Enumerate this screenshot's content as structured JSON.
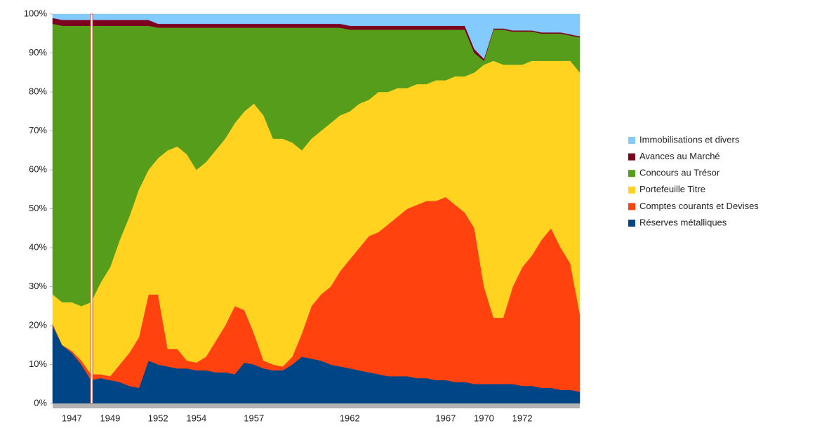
{
  "chart_data": {
    "type": "stacked_area",
    "categories": [
      null,
      null,
      "1947",
      null,
      null,
      null,
      "1949",
      null,
      null,
      null,
      null,
      "1952",
      null,
      null,
      null,
      "1954",
      null,
      null,
      null,
      null,
      null,
      "1957",
      null,
      null,
      null,
      null,
      null,
      null,
      null,
      null,
      null,
      "1962",
      null,
      null,
      null,
      null,
      null,
      null,
      null,
      null,
      null,
      "1967",
      null,
      null,
      null,
      "1970",
      null,
      null,
      null,
      "1972",
      null,
      null,
      null,
      null,
      null,
      null
    ],
    "ylim": [
      0,
      100
    ],
    "yticks": [
      {
        "value": 0,
        "label": "0%"
      },
      {
        "value": 10,
        "label": "10%"
      },
      {
        "value": 20,
        "label": "20%"
      },
      {
        "value": 30,
        "label": "30%"
      },
      {
        "value": 40,
        "label": "40%"
      },
      {
        "value": 50,
        "label": "50%"
      },
      {
        "value": 60,
        "label": "60%"
      },
      {
        "value": 70,
        "label": "70%"
      },
      {
        "value": 80,
        "label": "80%"
      },
      {
        "value": 90,
        "label": "90%"
      },
      {
        "value": 100,
        "label": "100%"
      }
    ],
    "series": [
      {
        "name": "Réserves métalliques",
        "color": "#004586",
        "values": [
          20,
          15,
          13,
          10,
          6,
          6.5,
          6,
          5.5,
          4.5,
          4,
          11,
          10,
          9.5,
          9,
          9,
          8.5,
          8.5,
          8,
          8,
          7.5,
          10.5,
          10,
          9,
          8.5,
          8.5,
          10,
          12,
          11.5,
          11,
          10,
          9.5,
          9,
          8.5,
          8,
          7.5,
          7,
          7,
          7,
          6.5,
          6.5,
          6,
          6,
          5.5,
          5.5,
          5,
          5,
          5,
          5,
          5,
          4.5,
          4.5,
          4,
          4,
          3.5,
          3.5,
          3
        ]
      },
      {
        "name": "Comptes courants et Devises",
        "color": "#ff420e",
        "values": [
          0.5,
          0,
          0.5,
          1,
          1.5,
          1,
          1,
          4.5,
          8.5,
          13,
          17,
          18,
          4.5,
          5,
          2,
          2,
          3.5,
          8,
          12,
          17.5,
          13.5,
          8,
          2,
          1.5,
          1,
          2,
          6,
          13.5,
          17,
          20,
          24.5,
          28,
          31.5,
          35,
          36.5,
          39,
          41,
          43,
          44.5,
          45.5,
          46,
          47,
          45.5,
          43.5,
          40,
          25,
          17,
          17,
          25,
          30.5,
          33.5,
          38,
          41,
          36.5,
          32.5,
          20
        ]
      },
      {
        "name": "Portefeuille Titre",
        "color": "#ffd320",
        "values": [
          7.5,
          11,
          12.5,
          14,
          18.5,
          23.5,
          28,
          32,
          35,
          38,
          32,
          35,
          51,
          52,
          53,
          49.5,
          50,
          49,
          48,
          47,
          51,
          59,
          63,
          58,
          58.5,
          55,
          47,
          43,
          42,
          42,
          40,
          38,
          37,
          35,
          36,
          34,
          33,
          31,
          31,
          30,
          31,
          30,
          33,
          35,
          40,
          57,
          66,
          65,
          57,
          52,
          50,
          46,
          43,
          48,
          52,
          62
        ]
      },
      {
        "name": "Concours au Trésor",
        "color": "#579d1c",
        "values": [
          69.5,
          71,
          71,
          72,
          71,
          66,
          62,
          55,
          49,
          42,
          37,
          33.5,
          31.5,
          30.5,
          32.5,
          36.5,
          34.5,
          31.5,
          28.5,
          24.5,
          21.5,
          19.5,
          22.5,
          28.5,
          28.5,
          29.5,
          31.5,
          28.5,
          26.5,
          24.5,
          22.5,
          21,
          19,
          18,
          16,
          16,
          15,
          15,
          14,
          14,
          13,
          13,
          12,
          12,
          5,
          1,
          8,
          9,
          8.5,
          8.5,
          7.5,
          7,
          7,
          7,
          6.5,
          9
        ]
      },
      {
        "name": "Avances au Marché",
        "color": "#7e0021",
        "values": [
          1.5,
          1.5,
          1.5,
          1.5,
          1.5,
          1.5,
          1.5,
          1.5,
          1.5,
          1.5,
          1.5,
          1,
          1,
          1,
          1,
          1,
          1,
          1,
          1,
          1,
          1,
          1,
          1,
          1,
          1,
          1,
          1,
          1,
          1,
          1,
          1,
          1,
          1,
          1,
          1,
          1,
          1,
          1,
          1,
          1,
          1,
          1,
          1,
          1,
          1,
          0.5,
          0.3,
          0.3,
          0.3,
          0.3,
          0.3,
          0.3,
          0.3,
          0.3,
          0.3,
          0.3
        ]
      },
      {
        "name": "Immobilisations et divers",
        "color": "#83caff",
        "values": [
          1,
          1.5,
          1.5,
          1.5,
          1.5,
          1.5,
          1.5,
          1.5,
          1.5,
          1.5,
          1.5,
          2.5,
          2.5,
          2.5,
          2.5,
          2.5,
          2.5,
          2.5,
          2.5,
          2.5,
          2.5,
          2.5,
          2.5,
          2.5,
          2.5,
          2.5,
          2.5,
          2.5,
          2.5,
          2.5,
          2.5,
          3,
          3,
          3,
          3,
          3,
          3,
          3,
          3,
          3,
          3,
          3,
          3,
          3,
          9,
          11.5,
          3.7,
          3.7,
          4.2,
          4.2,
          4.2,
          4.7,
          4.7,
          4.7,
          5.2,
          5.7
        ]
      }
    ]
  }
}
